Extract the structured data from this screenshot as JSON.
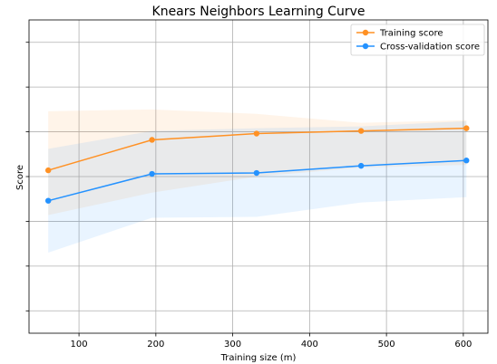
{
  "chart_data": {
    "type": "line",
    "title": "Knears Neighbors Learning Curve",
    "xlabel": "Training size (m)",
    "ylabel": "Score",
    "x": [
      60,
      195,
      331,
      467,
      604
    ],
    "xticks": [
      100,
      200,
      300,
      400,
      500,
      600
    ],
    "xlim": [
      35,
      632
    ],
    "ylim": [
      0.73,
      1.08
    ],
    "yticks": [
      0.755,
      0.805,
      0.855,
      0.905,
      0.955,
      1.005,
      1.055
    ],
    "show_ytick_labels": false,
    "grid": true,
    "legend_position": "top-right",
    "series": [
      {
        "name": "Training score",
        "color": "#ff9124",
        "values": [
          0.912,
          0.946,
          0.953,
          0.956,
          0.959
        ],
        "band_lower": [
          0.862,
          0.887,
          0.905,
          0.915,
          0.918
        ],
        "band_upper": [
          0.978,
          0.98,
          0.975,
          0.965,
          0.968
        ]
      },
      {
        "name": "Cross-validation score",
        "color": "#2492ff",
        "values": [
          0.878,
          0.908,
          0.909,
          0.917,
          0.923
        ],
        "band_lower": [
          0.82,
          0.859,
          0.86,
          0.876,
          0.882
        ],
        "band_upper": [
          0.936,
          0.956,
          0.959,
          0.961,
          0.967
        ]
      }
    ]
  }
}
